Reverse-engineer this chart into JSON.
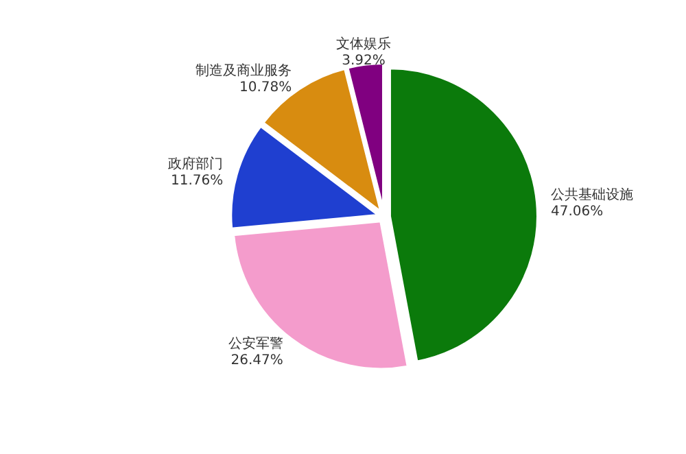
{
  "chart_data": {
    "type": "pie",
    "categories": [
      "公共基础设施",
      "公安军警",
      "政府部门",
      "制造及商业服务",
      "文体娱乐"
    ],
    "values": [
      47.06,
      26.47,
      11.76,
      10.78,
      3.92
    ],
    "value_labels": [
      "47.06%",
      "26.47%",
      "11.76%",
      "10.78%",
      "3.92%"
    ],
    "colors": [
      "#0b7a0b",
      "#f49ccc",
      "#1f3fd0",
      "#d88c10",
      "#800080"
    ],
    "legend": false
  }
}
